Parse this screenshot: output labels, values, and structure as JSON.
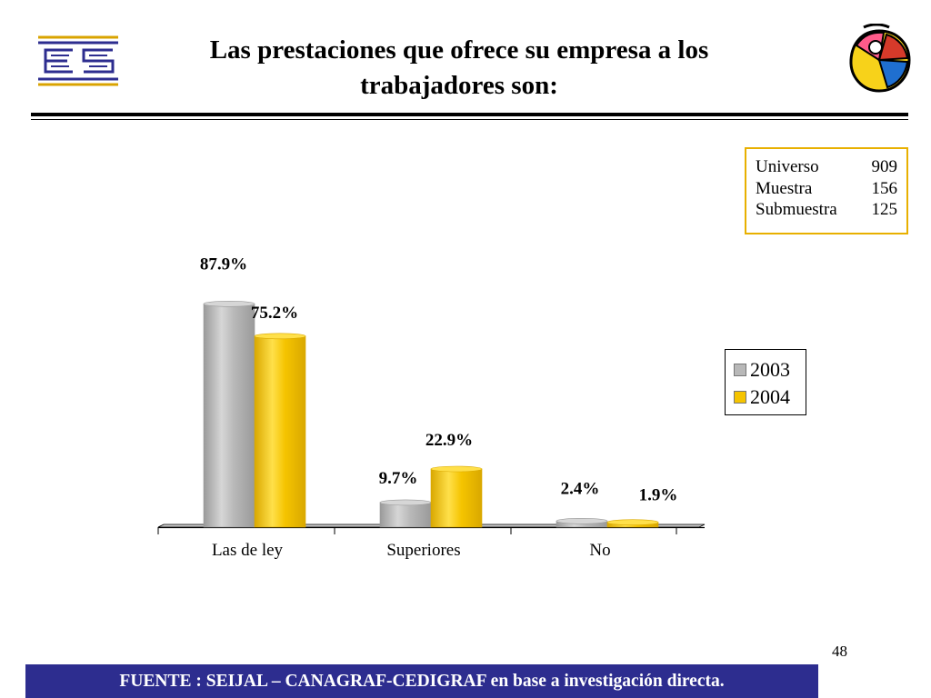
{
  "title": {
    "line1": "Las prestaciones que ofrece su empresa a los",
    "line2": "trabajadores son:"
  },
  "sample": {
    "rows": [
      {
        "label": "Universo",
        "value": "909"
      },
      {
        "label": "Muestra",
        "value": "156"
      },
      {
        "label": "Submuestra",
        "value": "125"
      }
    ],
    "border_color": "#e8b000"
  },
  "chart_data": {
    "type": "bar",
    "categories": [
      "Las de ley",
      "Superiores",
      "No"
    ],
    "series": [
      {
        "name": "2003",
        "values": [
          87.9,
          9.7,
          2.4
        ],
        "labels": [
          "87.9%",
          "9.7%",
          "2.4%"
        ],
        "color": "#b8b8b8"
      },
      {
        "name": "2004",
        "values": [
          75.2,
          22.9,
          1.9
        ],
        "labels": [
          "75.2%",
          "22.9%",
          "1.9%"
        ],
        "color": "#f5c400"
      }
    ],
    "ylim": [
      0,
      100
    ],
    "grid": false,
    "legend": "right",
    "style": "3d-cylinder"
  },
  "page_number": "48",
  "footer": {
    "text": "FUENTE :  SEIJAL – CANAGRAF-CEDIGRAF en base a investigación directa.",
    "background": "#2d2d8f"
  },
  "icons": {
    "left_logo": "cedigraf-logo-icon",
    "right_logo": "color-circle-logo-icon"
  }
}
